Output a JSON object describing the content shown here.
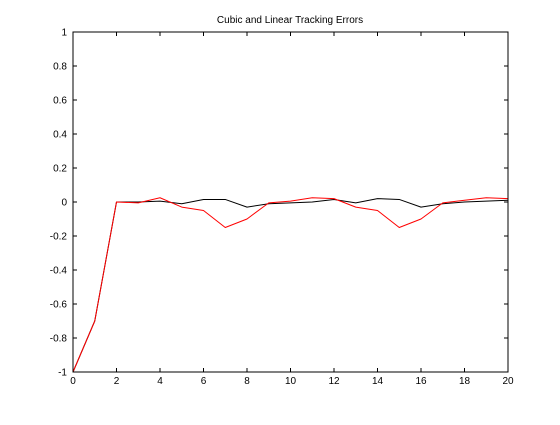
{
  "chart_data": {
    "type": "line",
    "title": "Cubic and Linear Tracking Errors",
    "xlabel": "",
    "ylabel": "",
    "xlim": [
      0,
      20
    ],
    "ylim": [
      -1,
      1
    ],
    "xticks": [
      "0",
      "2",
      "4",
      "6",
      "8",
      "10",
      "12",
      "14",
      "16",
      "18",
      "20"
    ],
    "yticks": [
      "-1",
      "-0.8",
      "-0.6",
      "-0.4",
      "-0.2",
      "0",
      "0.2",
      "0.4",
      "0.6",
      "0.8",
      "1"
    ],
    "grid": false,
    "series": [
      {
        "color": "#000000",
        "x": [
          0,
          1,
          2,
          3,
          4,
          5,
          6,
          7,
          8,
          9,
          10,
          11,
          12,
          13,
          14,
          15,
          16,
          17,
          18,
          19,
          20
        ],
        "y": [
          -1.0,
          -0.7,
          0.0,
          0.0,
          0.005,
          -0.01,
          0.015,
          0.015,
          -0.03,
          -0.01,
          -0.005,
          0.0,
          0.015,
          -0.005,
          0.02,
          0.015,
          -0.03,
          -0.01,
          0.0,
          0.005,
          0.01
        ]
      },
      {
        "color": "#ff0000",
        "x": [
          0,
          1,
          2,
          3,
          4,
          5,
          6,
          7,
          8,
          9,
          10,
          11,
          12,
          13,
          14,
          15,
          16,
          17,
          18,
          19,
          20
        ],
        "y": [
          -1.0,
          -0.7,
          0.0,
          -0.005,
          0.025,
          -0.03,
          -0.05,
          -0.15,
          -0.1,
          -0.005,
          0.005,
          0.025,
          0.02,
          -0.03,
          -0.05,
          -0.15,
          -0.1,
          -0.005,
          0.01,
          0.025,
          0.02
        ]
      }
    ]
  }
}
